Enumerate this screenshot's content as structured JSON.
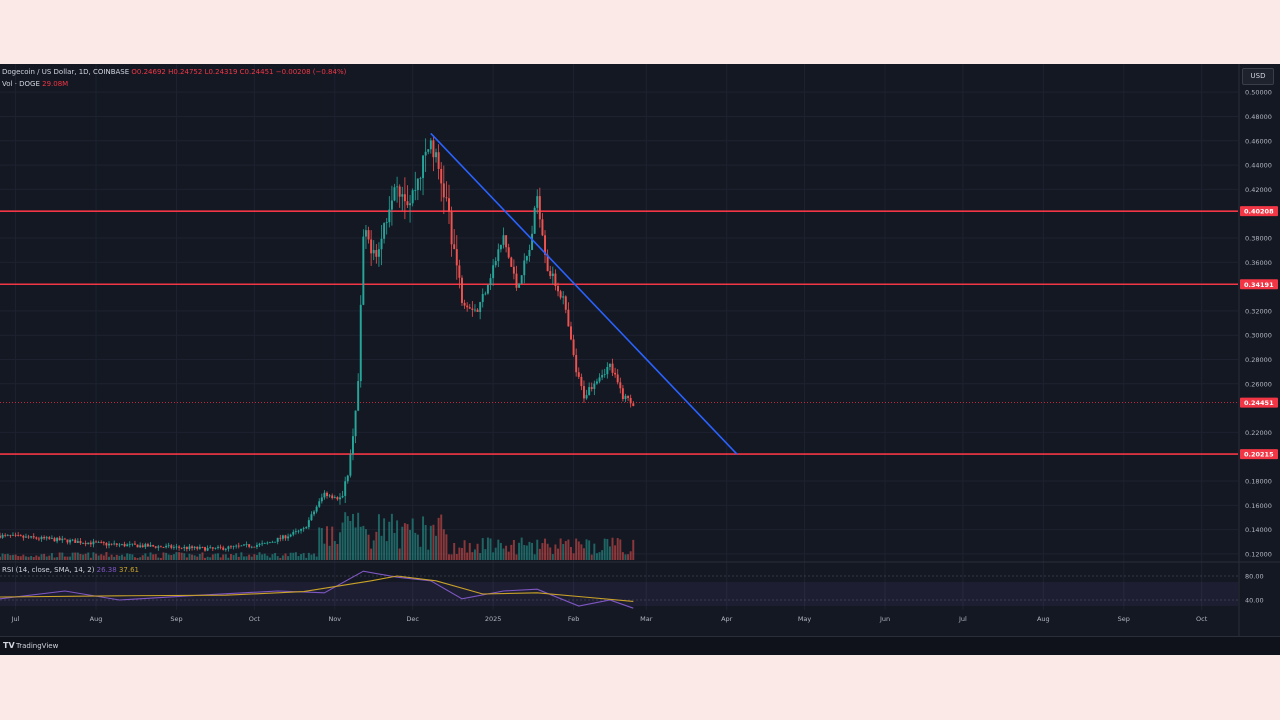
{
  "header": {
    "title": "Dogecoin / US Dollar, 1D, COINBASE",
    "ohlc": [
      "O0.24692",
      "H0.24752",
      "L0.24319",
      "C0.24451",
      "−0.00208 (−0.84%)"
    ],
    "volume_label": "Vol · DOGE",
    "volume_value": "29.08M"
  },
  "currency_button": "USD",
  "rsi_header": {
    "label": "RSI (14, close, SMA, 14, 2)",
    "value1": "26.38",
    "value2": "37.61"
  },
  "footer": {
    "logo": "TV",
    "brand": "TradingView"
  },
  "colors": {
    "background": "#141823",
    "up": "#26a69a",
    "down": "#ef5350",
    "level_line": "#f23645",
    "trend_line": "#2962ff",
    "rsi_line": "#7e57c2",
    "rsi_ma": "#c9a227"
  },
  "chart_data": {
    "type": "candlestick",
    "symbol": "Dogecoin / US Dollar",
    "interval": "1D",
    "exchange": "COINBASE",
    "y_ticks": [
      "0.50000",
      "0.48000",
      "0.46000",
      "0.44000",
      "0.42000",
      "0.38000",
      "0.36000",
      "0.32000",
      "0.30000",
      "0.28000",
      "0.26000",
      "0.22000",
      "0.18000",
      "0.16000",
      "0.14000",
      "0.12000"
    ],
    "y_tick_values": [
      0.5,
      0.48,
      0.46,
      0.44,
      0.42,
      0.38,
      0.36,
      0.32,
      0.3,
      0.28,
      0.26,
      0.22,
      0.18,
      0.16,
      0.14,
      0.12
    ],
    "ylim": [
      0.115,
      0.51
    ],
    "x_labels": [
      "Jul",
      "Aug",
      "Sep",
      "Oct",
      "Nov",
      "Dec",
      "2025",
      "Feb",
      "Mar",
      "Apr",
      "May",
      "Jun",
      "Jul",
      "Aug",
      "Sep",
      "Oct"
    ],
    "x_dates": [
      "2024-07-01",
      "2024-08-01",
      "2024-09-01",
      "2024-10-01",
      "2024-11-01",
      "2024-12-01",
      "2025-01-01",
      "2025-02-01",
      "2025-03-01",
      "2025-04-01",
      "2025-05-01",
      "2025-06-01",
      "2025-07-01",
      "2025-08-01",
      "2025-09-01",
      "2025-10-01"
    ],
    "horizontal_levels": [
      {
        "value": 0.40208,
        "label": "0.40208"
      },
      {
        "value": 0.34191,
        "label": "0.34191"
      },
      {
        "value": 0.20215,
        "label": "0.20215"
      }
    ],
    "last_price": {
      "value": 0.24451,
      "label": "0.24451"
    },
    "trend_line": {
      "from": {
        "date": "2024-12-08",
        "price": 0.466
      },
      "to": {
        "date": "2025-04-05",
        "price": 0.202
      }
    },
    "anchor_points": [
      {
        "date": "2024-06-25",
        "price": 0.135
      },
      {
        "date": "2024-07-15",
        "price": 0.132
      },
      {
        "date": "2024-08-05",
        "price": 0.128
      },
      {
        "date": "2024-08-25",
        "price": 0.126
      },
      {
        "date": "2024-09-15",
        "price": 0.124
      },
      {
        "date": "2024-10-05",
        "price": 0.128
      },
      {
        "date": "2024-10-20",
        "price": 0.14
      },
      {
        "date": "2024-10-28",
        "price": 0.17
      },
      {
        "date": "2024-11-04",
        "price": 0.165
      },
      {
        "date": "2024-11-07",
        "price": 0.2
      },
      {
        "date": "2024-11-10",
        "price": 0.26
      },
      {
        "date": "2024-11-12",
        "price": 0.38
      },
      {
        "date": "2024-11-18",
        "price": 0.37
      },
      {
        "date": "2024-11-24",
        "price": 0.43
      },
      {
        "date": "2024-11-30",
        "price": 0.41
      },
      {
        "date": "2024-12-08",
        "price": 0.46
      },
      {
        "date": "2024-12-14",
        "price": 0.41
      },
      {
        "date": "2024-12-20",
        "price": 0.33
      },
      {
        "date": "2024-12-26",
        "price": 0.32
      },
      {
        "date": "2025-01-05",
        "price": 0.38
      },
      {
        "date": "2025-01-10",
        "price": 0.34
      },
      {
        "date": "2025-01-15",
        "price": 0.37
      },
      {
        "date": "2025-01-18",
        "price": 0.415
      },
      {
        "date": "2025-01-22",
        "price": 0.355
      },
      {
        "date": "2025-01-28",
        "price": 0.33
      },
      {
        "date": "2025-02-02",
        "price": 0.27
      },
      {
        "date": "2025-02-05",
        "price": 0.25
      },
      {
        "date": "2025-02-10",
        "price": 0.265
      },
      {
        "date": "2025-02-15",
        "price": 0.275
      },
      {
        "date": "2025-02-20",
        "price": 0.25
      },
      {
        "date": "2025-02-24",
        "price": 0.2445
      }
    ],
    "rsi": {
      "ylim": [
        30,
        90
      ],
      "y_ticks": [
        "80.00",
        "40.00"
      ],
      "y_tick_values": [
        80,
        40
      ],
      "band": [
        30,
        70
      ],
      "rsi_points": [
        {
          "date": "2024-06-25",
          "v": 42
        },
        {
          "date": "2024-07-20",
          "v": 55
        },
        {
          "date": "2024-08-10",
          "v": 40
        },
        {
          "date": "2024-09-10",
          "v": 48
        },
        {
          "date": "2024-10-10",
          "v": 55
        },
        {
          "date": "2024-10-28",
          "v": 52
        },
        {
          "date": "2024-11-12",
          "v": 88
        },
        {
          "date": "2024-11-25",
          "v": 78
        },
        {
          "date": "2024-12-08",
          "v": 72
        },
        {
          "date": "2024-12-20",
          "v": 42
        },
        {
          "date": "2025-01-05",
          "v": 55
        },
        {
          "date": "2025-01-18",
          "v": 58
        },
        {
          "date": "2025-02-03",
          "v": 30
        },
        {
          "date": "2025-02-15",
          "v": 40
        },
        {
          "date": "2025-02-24",
          "v": 26.38
        }
      ],
      "ma_points": [
        {
          "date": "2024-06-25",
          "v": 45
        },
        {
          "date": "2024-08-10",
          "v": 47
        },
        {
          "date": "2024-09-20",
          "v": 48
        },
        {
          "date": "2024-10-20",
          "v": 54
        },
        {
          "date": "2024-11-15",
          "v": 72
        },
        {
          "date": "2024-11-25",
          "v": 80
        },
        {
          "date": "2024-12-10",
          "v": 72
        },
        {
          "date": "2024-12-28",
          "v": 50
        },
        {
          "date": "2025-01-18",
          "v": 52
        },
        {
          "date": "2025-02-05",
          "v": 45
        },
        {
          "date": "2025-02-24",
          "v": 37.61
        }
      ]
    }
  }
}
